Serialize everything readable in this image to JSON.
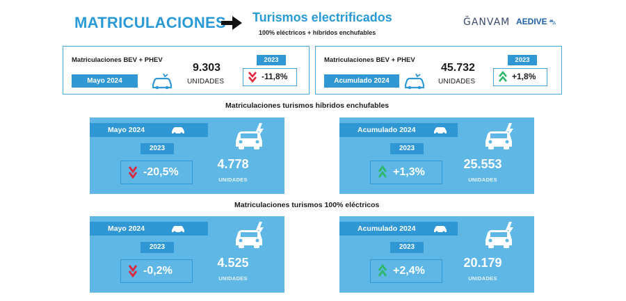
{
  "header": {
    "title": "MATRICULACIONES",
    "subtitle": "Turismos electrificados",
    "caption": "100% eléctricos + híbridos enchufables",
    "logos": {
      "ganvam": "ĞANVAM",
      "aedive": "AEDIVE"
    }
  },
  "summary": [
    {
      "label": "Matriculaciones BEV + PHEV",
      "period": "Mayo 2024",
      "value": "9.303",
      "unit": "UNIDADES",
      "year": "2023",
      "change": "-11,8%",
      "trend": "down"
    },
    {
      "label": "Matriculaciones BEV + PHEV",
      "period": "Acumulado 2024",
      "value": "45.732",
      "unit": "UNIDADES",
      "year": "2023",
      "change": "+1,8%",
      "trend": "up"
    }
  ],
  "sections": [
    {
      "title": "Matriculaciones turismos híbridos enchufables",
      "panels": [
        {
          "period": "Mayo 2024",
          "year": "2023",
          "change": "-20,5%",
          "trend": "down",
          "value": "4.778",
          "unit": "UNIDADES"
        },
        {
          "period": "Acumulado 2024",
          "year": "2023",
          "change": "+1,3%",
          "trend": "up",
          "value": "25.553",
          "unit": "UNIDADES"
        }
      ]
    },
    {
      "title": "Matriculaciones turismos 100% eléctricos",
      "panels": [
        {
          "period": "Mayo 2024",
          "year": "2023",
          "change": "-0,2%",
          "trend": "down",
          "value": "4.525",
          "unit": "UNIDADES"
        },
        {
          "period": "Acumulado 2024",
          "year": "2023",
          "change": "+2,4%",
          "trend": "up",
          "value": "20.179",
          "unit": "UNIDADES"
        }
      ]
    }
  ],
  "colors": {
    "accent": "#2a9ad6",
    "panel": "#5fb7e6",
    "tab": "#2e97d4",
    "down": "#e0263c",
    "up": "#2eb86b"
  },
  "icons": {
    "arrow": "arrow-right-icon",
    "car": "electric-car-icon",
    "down": "chevron-double-down-icon",
    "up": "chevron-double-up-icon"
  }
}
